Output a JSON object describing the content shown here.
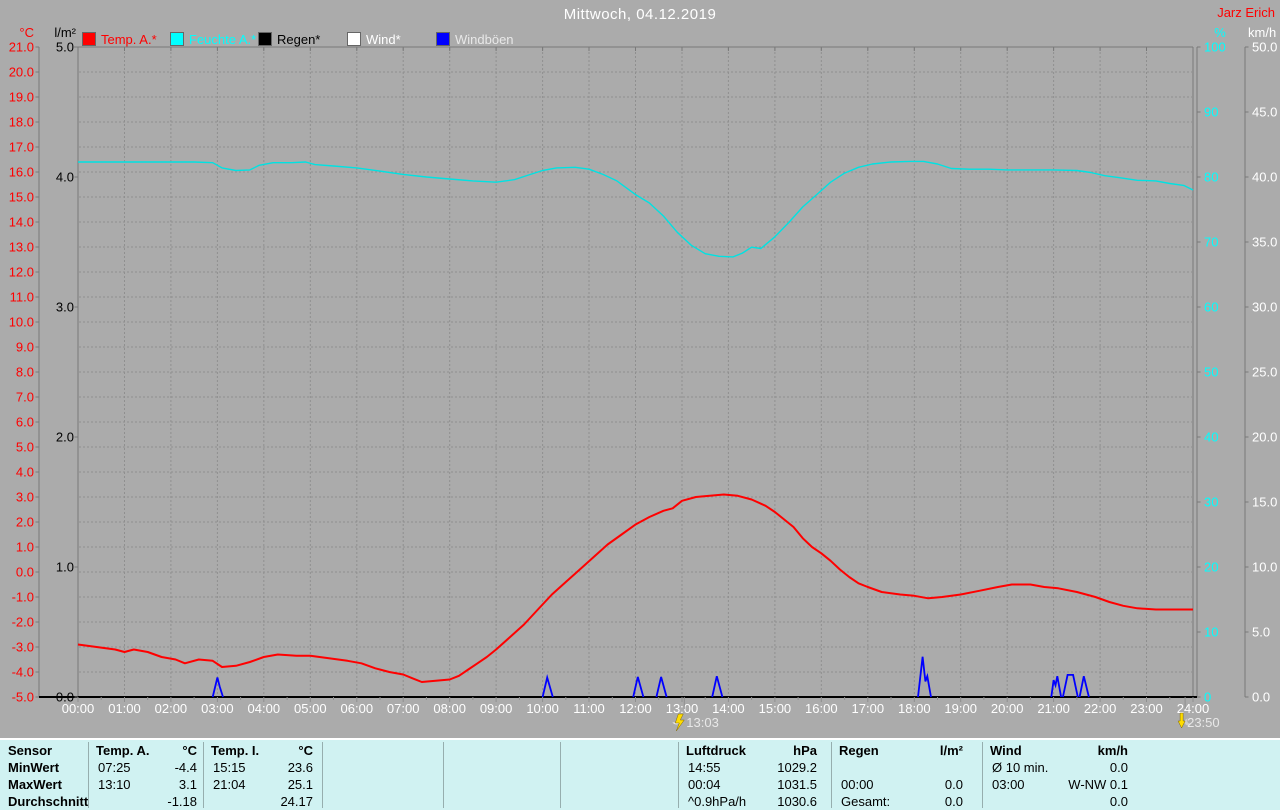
{
  "header": {
    "title": "Mittwoch, 04.12.2019",
    "watermark": "Jarz Erich"
  },
  "legend": [
    {
      "label": "Temp. A.*",
      "swatch": "#ff0000",
      "text_color": "#ff0000"
    },
    {
      "label": "Feuchte A.*",
      "swatch": "#00ffff",
      "text_color": "#00ffff"
    },
    {
      "label": "Regen*",
      "swatch": "#000000",
      "text_color": "#000000"
    },
    {
      "label": "Wind*",
      "swatch": "#ffffff",
      "text_color": "#ffffff"
    },
    {
      "label": "Windböen",
      "swatch": "#0000ff",
      "text_color": "#e8e8e8"
    }
  ],
  "chart_data": {
    "type": "line",
    "grid": true,
    "background": "#ababab",
    "grid_color": "#8f8f8f",
    "axes": {
      "left1": {
        "unit": "°C",
        "color": "#ff0000",
        "min": -5,
        "max": 21,
        "step": 1,
        "decimals": 1
      },
      "left2": {
        "unit": "l/m²",
        "color": "#000000",
        "min": 0,
        "max": 5,
        "step": 1,
        "decimals": 1
      },
      "right1": {
        "unit": "%",
        "color": "#00ffff",
        "min": 0,
        "max": 100,
        "step": 10,
        "decimals": 0
      },
      "right2": {
        "unit": "km/h",
        "color": "#ffffff",
        "min": 0,
        "max": 50,
        "step": 5,
        "decimals": 1
      },
      "x": {
        "min": 0,
        "max": 24,
        "step": 1,
        "label_suffix": ":00",
        "label_color": "#ffffff"
      }
    },
    "series": [
      {
        "name": "Feuchte A.*",
        "axis": "right1",
        "color": "#00e2e2",
        "width": 1.4,
        "points": [
          [
            0,
            82.3
          ],
          [
            0.5,
            82.3
          ],
          [
            1,
            82.3
          ],
          [
            1.5,
            82.3
          ],
          [
            2,
            82.3
          ],
          [
            2.5,
            82.3
          ],
          [
            2.9,
            82.2
          ],
          [
            3.1,
            81.4
          ],
          [
            3.4,
            81.0
          ],
          [
            3.7,
            81.1
          ],
          [
            3.9,
            81.8
          ],
          [
            4.2,
            82.2
          ],
          [
            4.6,
            82.2
          ],
          [
            4.9,
            82.3
          ],
          [
            5.1,
            81.9
          ],
          [
            5.5,
            81.7
          ],
          [
            6,
            81.4
          ],
          [
            6.5,
            80.9
          ],
          [
            7,
            80.4
          ],
          [
            7.5,
            80.0
          ],
          [
            8,
            79.7
          ],
          [
            8.5,
            79.4
          ],
          [
            9,
            79.2
          ],
          [
            9.4,
            79.6
          ],
          [
            9.7,
            80.3
          ],
          [
            10,
            81.0
          ],
          [
            10.3,
            81.4
          ],
          [
            10.7,
            81.5
          ],
          [
            11,
            81.2
          ],
          [
            11.3,
            80.4
          ],
          [
            11.6,
            79.4
          ],
          [
            12,
            77.3
          ],
          [
            12.3,
            76.0
          ],
          [
            12.6,
            74.0
          ],
          [
            12.9,
            71.5
          ],
          [
            13.2,
            69.5
          ],
          [
            13.5,
            68.2
          ],
          [
            13.8,
            67.8
          ],
          [
            14.1,
            67.7
          ],
          [
            14.3,
            68.3
          ],
          [
            14.5,
            69.2
          ],
          [
            14.7,
            69.0
          ],
          [
            15,
            70.8
          ],
          [
            15.3,
            73.0
          ],
          [
            15.6,
            75.4
          ],
          [
            15.9,
            77.3
          ],
          [
            16.2,
            79.2
          ],
          [
            16.5,
            80.6
          ],
          [
            16.8,
            81.5
          ],
          [
            17.1,
            82.0
          ],
          [
            17.5,
            82.3
          ],
          [
            17.9,
            82.4
          ],
          [
            18.2,
            82.4
          ],
          [
            18.5,
            82.0
          ],
          [
            18.8,
            81.3
          ],
          [
            19.2,
            81.2
          ],
          [
            19.6,
            81.2
          ],
          [
            20,
            81.1
          ],
          [
            20.5,
            81.1
          ],
          [
            21,
            81.1
          ],
          [
            21.5,
            81.0
          ],
          [
            21.8,
            80.7
          ],
          [
            22.1,
            80.2
          ],
          [
            22.4,
            79.9
          ],
          [
            22.8,
            79.5
          ],
          [
            23.2,
            79.4
          ],
          [
            23.5,
            79.0
          ],
          [
            23.8,
            78.7
          ],
          [
            24,
            78.0
          ]
        ]
      },
      {
        "name": "Temp. A.*",
        "axis": "left1",
        "color": "#ff0000",
        "width": 2,
        "points": [
          [
            0,
            -2.9
          ],
          [
            0.4,
            -3.0
          ],
          [
            0.8,
            -3.1
          ],
          [
            1.0,
            -3.2
          ],
          [
            1.2,
            -3.1
          ],
          [
            1.5,
            -3.2
          ],
          [
            1.8,
            -3.4
          ],
          [
            2.1,
            -3.5
          ],
          [
            2.3,
            -3.65
          ],
          [
            2.6,
            -3.5
          ],
          [
            2.9,
            -3.55
          ],
          [
            3.1,
            -3.8
          ],
          [
            3.4,
            -3.75
          ],
          [
            3.7,
            -3.6
          ],
          [
            4.0,
            -3.4
          ],
          [
            4.3,
            -3.3
          ],
          [
            4.7,
            -3.35
          ],
          [
            5.0,
            -3.35
          ],
          [
            5.4,
            -3.45
          ],
          [
            5.8,
            -3.55
          ],
          [
            6.1,
            -3.65
          ],
          [
            6.4,
            -3.85
          ],
          [
            6.7,
            -4.0
          ],
          [
            7.0,
            -4.1
          ],
          [
            7.2,
            -4.25
          ],
          [
            7.4,
            -4.4
          ],
          [
            7.7,
            -4.35
          ],
          [
            8.0,
            -4.3
          ],
          [
            8.2,
            -4.15
          ],
          [
            8.4,
            -3.9
          ],
          [
            8.6,
            -3.65
          ],
          [
            8.8,
            -3.4
          ],
          [
            9.0,
            -3.1
          ],
          [
            9.3,
            -2.6
          ],
          [
            9.6,
            -2.1
          ],
          [
            9.9,
            -1.5
          ],
          [
            10.2,
            -0.9
          ],
          [
            10.5,
            -0.4
          ],
          [
            10.8,
            0.1
          ],
          [
            11.1,
            0.6
          ],
          [
            11.4,
            1.1
          ],
          [
            11.7,
            1.5
          ],
          [
            12.0,
            1.9
          ],
          [
            12.3,
            2.2
          ],
          [
            12.6,
            2.45
          ],
          [
            12.8,
            2.55
          ],
          [
            13.0,
            2.85
          ],
          [
            13.3,
            3.0
          ],
          [
            13.6,
            3.05
          ],
          [
            13.9,
            3.1
          ],
          [
            14.2,
            3.05
          ],
          [
            14.5,
            2.9
          ],
          [
            14.8,
            2.65
          ],
          [
            15.0,
            2.4
          ],
          [
            15.2,
            2.1
          ],
          [
            15.4,
            1.8
          ],
          [
            15.6,
            1.35
          ],
          [
            15.8,
            1.0
          ],
          [
            16.0,
            0.75
          ],
          [
            16.2,
            0.45
          ],
          [
            16.4,
            0.1
          ],
          [
            16.6,
            -0.2
          ],
          [
            16.8,
            -0.45
          ],
          [
            17.0,
            -0.6
          ],
          [
            17.3,
            -0.8
          ],
          [
            17.7,
            -0.9
          ],
          [
            18.0,
            -0.95
          ],
          [
            18.3,
            -1.05
          ],
          [
            18.6,
            -1.0
          ],
          [
            19.0,
            -0.9
          ],
          [
            19.4,
            -0.75
          ],
          [
            19.8,
            -0.6
          ],
          [
            20.1,
            -0.5
          ],
          [
            20.5,
            -0.5
          ],
          [
            20.8,
            -0.6
          ],
          [
            21.1,
            -0.65
          ],
          [
            21.5,
            -0.8
          ],
          [
            21.9,
            -1.0
          ],
          [
            22.2,
            -1.2
          ],
          [
            22.5,
            -1.35
          ],
          [
            22.8,
            -1.45
          ],
          [
            23.2,
            -1.5
          ],
          [
            23.6,
            -1.5
          ],
          [
            24,
            -1.5
          ]
        ]
      },
      {
        "name": "Regen*",
        "axis": "left2",
        "color": "#000000",
        "width": 1,
        "points": [
          [
            0,
            0
          ],
          [
            24,
            0
          ]
        ]
      },
      {
        "name": "Wind*",
        "axis": "right2",
        "color": "#ffffff",
        "width": 1,
        "points": [
          [
            0,
            0
          ],
          [
            24,
            0
          ]
        ]
      },
      {
        "name": "Windböen",
        "axis": "right2",
        "color": "#0000ff",
        "width": 1.8,
        "spikes": [
          [
            [
              2.9,
              0
            ],
            [
              3.0,
              1.5
            ],
            [
              3.05,
              0.8
            ],
            [
              3.12,
              0
            ]
          ],
          [
            [
              10.0,
              0
            ],
            [
              10.1,
              1.5
            ],
            [
              10.22,
              0
            ]
          ],
          [
            [
              11.95,
              0
            ],
            [
              12.05,
              1.55
            ],
            [
              12.17,
              0
            ]
          ],
          [
            [
              12.45,
              0
            ],
            [
              12.55,
              1.55
            ],
            [
              12.67,
              0
            ]
          ],
          [
            [
              13.65,
              0
            ],
            [
              13.75,
              1.6
            ],
            [
              13.87,
              0
            ]
          ],
          [
            [
              18.08,
              0
            ],
            [
              18.18,
              3.1
            ],
            [
              18.24,
              1.2
            ],
            [
              18.28,
              1.6
            ],
            [
              18.36,
              0
            ]
          ],
          [
            [
              20.95,
              0
            ],
            [
              21.0,
              1.3
            ],
            [
              21.04,
              0.9
            ],
            [
              21.08,
              1.6
            ],
            [
              21.16,
              0
            ]
          ],
          [
            [
              21.2,
              0
            ],
            [
              21.3,
              1.7
            ],
            [
              21.42,
              1.7
            ],
            [
              21.52,
              0
            ]
          ],
          [
            [
              21.56,
              0
            ],
            [
              21.65,
              1.6
            ],
            [
              21.76,
              0
            ]
          ]
        ]
      }
    ],
    "event_markers": [
      {
        "time": "13:03",
        "hour": 13.05,
        "icon": "lightning-icon"
      },
      {
        "time": "23:50",
        "hour": 23.83,
        "icon": "arrow-down-icon"
      }
    ],
    "title": "Mittwoch, 04.12.2019",
    "legend_position": "top"
  },
  "table": {
    "row_labels": [
      "Sensor",
      "MinWert",
      "MaxWert",
      "Durchschnitt"
    ],
    "columns": [
      {
        "name": "Temp. A.",
        "unit": "°C",
        "rows": [
          [
            "07:25",
            "-4.4"
          ],
          [
            "13:10",
            "3.1"
          ],
          [
            "",
            "-1.18"
          ]
        ]
      },
      {
        "name": "Temp. I.",
        "unit": "°C",
        "rows": [
          [
            "15:15",
            "23.6"
          ],
          [
            "21:04",
            "25.1"
          ],
          [
            "",
            "24.17"
          ]
        ]
      },
      {
        "name": "Luftdruck",
        "unit": "hPa",
        "rows": [
          [
            "14:55",
            "1029.2"
          ],
          [
            "00:04",
            "1031.5"
          ],
          [
            "^0.9hPa/h",
            "1030.6"
          ]
        ]
      },
      {
        "name": "Regen",
        "unit": "l/m²",
        "rows": [
          [
            "",
            ""
          ],
          [
            "00:00",
            "0.0"
          ],
          [
            "Gesamt:",
            "0.0"
          ]
        ]
      },
      {
        "name": "Wind",
        "unit": "km/h",
        "rows": [
          [
            "Ø 10 min.",
            "0.0"
          ],
          [
            "03:00",
            "W-NW 0.1"
          ],
          [
            "",
            "0.0"
          ]
        ]
      }
    ]
  }
}
